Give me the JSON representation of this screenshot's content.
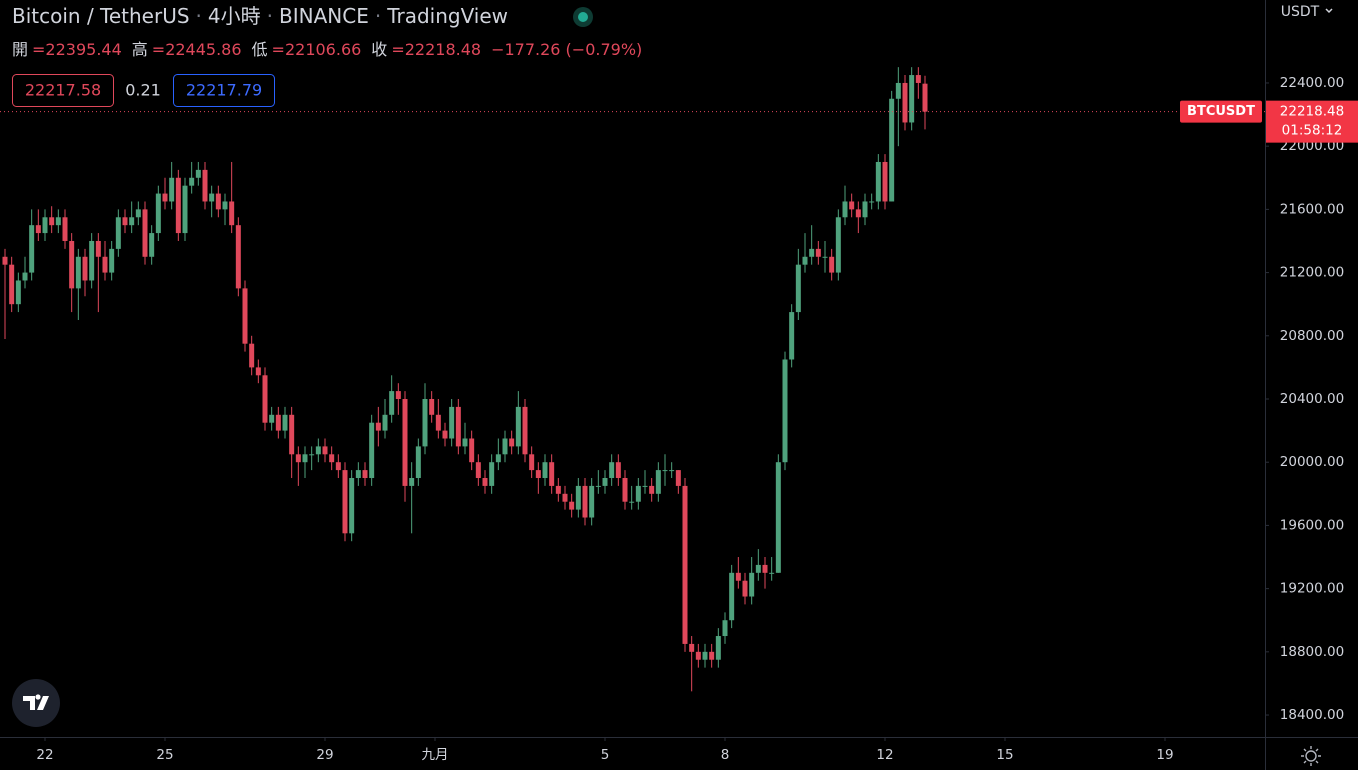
{
  "header": {
    "symbol": "Bitcoin / TetherUS",
    "interval": "4小時",
    "exchange": "BINANCE",
    "source": "TradingView",
    "legend": [
      {
        "label": "開",
        "value": "=22395.44"
      },
      {
        "label": "高",
        "value": "=22445.86"
      },
      {
        "label": "低",
        "value": "=22106.66"
      },
      {
        "label": "收",
        "value": "=22218.48"
      }
    ],
    "change": "−177.26 (−0.79%)",
    "bid": "22217.58",
    "spread": "0.21",
    "ask": "22217.79",
    "currency": "USDT"
  },
  "chart_data": {
    "type": "candlestick",
    "up_color": "#4fa27d",
    "down_color": "#e0485b",
    "grid": false,
    "price_label": {
      "name": "BTCUSDT",
      "price": "22218.48",
      "countdown": "01:58:12"
    },
    "last_price": 22218.48,
    "ylim": [
      18261,
      22925
    ],
    "yticks": [
      {
        "value": 18400,
        "label": "18400.00"
      },
      {
        "value": 18800,
        "label": "18800.00"
      },
      {
        "value": 19200,
        "label": "19200.00"
      },
      {
        "value": 19600,
        "label": "19600.00"
      },
      {
        "value": 20000,
        "label": "20000.00"
      },
      {
        "value": 20400,
        "label": "20400.00"
      },
      {
        "value": 20800,
        "label": "20800.00"
      },
      {
        "value": 21200,
        "label": "21200.00"
      },
      {
        "value": 21600,
        "label": "21600.00"
      },
      {
        "value": 22000,
        "label": "22000.00"
      },
      {
        "value": 22400,
        "label": "22400.00"
      }
    ],
    "xlim": [
      -0.75,
      189
    ],
    "xticks": [
      {
        "value": 6,
        "label": "22"
      },
      {
        "value": 24,
        "label": "25"
      },
      {
        "value": 48,
        "label": "29"
      },
      {
        "value": 64.5,
        "label": "九月"
      },
      {
        "value": 90,
        "label": "5"
      },
      {
        "value": 108,
        "label": "8"
      },
      {
        "value": 132,
        "label": "12"
      },
      {
        "value": 150,
        "label": "15"
      },
      {
        "value": 174,
        "label": "19"
      }
    ],
    "open": [
      21300,
      21250,
      21000,
      21150,
      21200,
      21500,
      21450,
      21550,
      21500,
      21550,
      21400,
      21100,
      21300,
      21150,
      21400,
      21300,
      21200,
      21350,
      21550,
      21500,
      21550,
      21600,
      21300,
      21450,
      21700,
      21650,
      21800,
      21450,
      21750,
      21800,
      21850,
      21650,
      21700,
      21600,
      21650,
      21500,
      21100,
      20750,
      20600,
      20550,
      20250,
      20300,
      20200,
      20300,
      20050,
      20000,
      20050,
      20050,
      20100,
      20050,
      20000,
      19950,
      19550,
      19900,
      19950,
      19900,
      20250,
      20200,
      20300,
      20450,
      20400,
      19850,
      19900,
      20100,
      20400,
      20300,
      20200,
      20150,
      20350,
      20100,
      20150,
      20000,
      19900,
      19850,
      20000,
      20050,
      20150,
      20100,
      20350,
      20050,
      19950,
      19900,
      20000,
      19850,
      19800,
      19750,
      19700,
      19850,
      19650,
      19850,
      19850,
      19900,
      20000,
      19900,
      19750,
      19750,
      19850,
      19850,
      19800,
      19950,
      19950,
      19950,
      19850,
      18850,
      18800,
      18750,
      18800,
      18750,
      18900,
      19000,
      19300,
      19250,
      19150,
      19300,
      19350,
      19300,
      19300,
      20000,
      20650,
      20950,
      21250,
      21300,
      21350,
      21300,
      21300,
      21200,
      21550,
      21650,
      21600,
      21550,
      21650,
      21650,
      21900,
      21650,
      22300,
      22400,
      22150,
      22450,
      22395.44
    ],
    "high": [
      21350,
      21300,
      21200,
      21300,
      21600,
      21600,
      21600,
      21620,
      21600,
      21600,
      21450,
      21350,
      21350,
      21450,
      21450,
      21400,
      21400,
      21600,
      21600,
      21650,
      21650,
      21650,
      21500,
      21750,
      21800,
      21900,
      21850,
      21800,
      21900,
      21900,
      21900,
      21750,
      21750,
      21700,
      21900,
      21550,
      21150,
      20800,
      20650,
      20600,
      20350,
      20350,
      20350,
      20350,
      20100,
      20100,
      20100,
      20150,
      20150,
      20100,
      20050,
      20000,
      19950,
      20000,
      20000,
      20300,
      20350,
      20400,
      20550,
      20500,
      20450,
      20000,
      20150,
      20500,
      20450,
      20400,
      20250,
      20400,
      20400,
      20250,
      20200,
      20050,
      19950,
      20050,
      20150,
      20200,
      20200,
      20450,
      20400,
      20100,
      20000,
      20050,
      20050,
      19900,
      19850,
      19800,
      19900,
      19900,
      19900,
      19950,
      19950,
      20050,
      20050,
      19950,
      19850,
      19900,
      19950,
      19900,
      20000,
      20050,
      20000,
      19950,
      19900,
      18900,
      18850,
      18850,
      18850,
      18950,
      19050,
      19350,
      19400,
      19300,
      19400,
      19450,
      19400,
      19400,
      20050,
      20700,
      21000,
      21350,
      21450,
      21500,
      21400,
      21400,
      21350,
      21600,
      21750,
      21700,
      21650,
      21700,
      21700,
      21950,
      21950,
      22350,
      22500,
      22450,
      22500,
      22500,
      22445.86
    ],
    "low": [
      20780,
      20950,
      20950,
      21100,
      21150,
      21400,
      21400,
      21450,
      21450,
      21350,
      20950,
      20900,
      21050,
      21100,
      20950,
      21150,
      21150,
      21300,
      21450,
      21450,
      21500,
      21250,
      21250,
      21400,
      21600,
      21600,
      21400,
      21400,
      21700,
      21750,
      21600,
      21550,
      21550,
      21500,
      21450,
      21050,
      20700,
      20550,
      20500,
      20200,
      20200,
      20150,
      20150,
      19900,
      19850,
      19900,
      19950,
      20000,
      20000,
      19950,
      19900,
      19500,
      19500,
      19850,
      19850,
      19850,
      20100,
      20150,
      20250,
      20300,
      19750,
      19550,
      19850,
      20050,
      20250,
      20150,
      20100,
      20100,
      20050,
      20050,
      19950,
      19850,
      19800,
      19800,
      19950,
      20000,
      20050,
      20050,
      20000,
      19900,
      19800,
      19850,
      19800,
      19750,
      19700,
      19650,
      19650,
      19600,
      19600,
      19800,
      19800,
      19850,
      19850,
      19700,
      19700,
      19700,
      19800,
      19750,
      19750,
      19850,
      19900,
      19800,
      18800,
      18550,
      18700,
      18700,
      18700,
      18700,
      18850,
      18950,
      19200,
      19100,
      19100,
      19250,
      19200,
      19250,
      19300,
      19950,
      20600,
      20900,
      21200,
      21250,
      21250,
      21200,
      21150,
      21150,
      21500,
      21550,
      21450,
      21500,
      21600,
      21600,
      21600,
      21650,
      22000,
      22100,
      22100,
      22300,
      22106.66
    ],
    "close": [
      21250,
      21000,
      21150,
      21200,
      21500,
      21450,
      21550,
      21500,
      21550,
      21400,
      21100,
      21300,
      21150,
      21400,
      21300,
      21200,
      21350,
      21550,
      21500,
      21550,
      21600,
      21300,
      21450,
      21700,
      21650,
      21800,
      21450,
      21750,
      21800,
      21850,
      21650,
      21700,
      21600,
      21650,
      21500,
      21100,
      20750,
      20600,
      20550,
      20250,
      20300,
      20200,
      20300,
      20050,
      20000,
      20050,
      20050,
      20100,
      20050,
      20000,
      19950,
      19550,
      19900,
      19950,
      19900,
      20250,
      20200,
      20300,
      20450,
      20400,
      19850,
      19900,
      20100,
      20400,
      20300,
      20200,
      20150,
      20350,
      20100,
      20150,
      20000,
      19900,
      19850,
      20000,
      20050,
      20150,
      20100,
      20350,
      20050,
      19950,
      19900,
      20000,
      19850,
      19800,
      19750,
      19700,
      19850,
      19650,
      19850,
      19850,
      19900,
      20000,
      19900,
      19750,
      19750,
      19850,
      19850,
      19800,
      19950,
      19950,
      19950,
      19850,
      18850,
      18800,
      18750,
      18800,
      18750,
      18900,
      19000,
      19300,
      19250,
      19150,
      19300,
      19350,
      19300,
      19300,
      20000,
      20650,
      20950,
      21250,
      21300,
      21350,
      21300,
      21300,
      21200,
      21550,
      21650,
      21600,
      21550,
      21650,
      21650,
      21900,
      21650,
      22300,
      22400,
      22150,
      22450,
      22400,
      22218.48
    ]
  }
}
